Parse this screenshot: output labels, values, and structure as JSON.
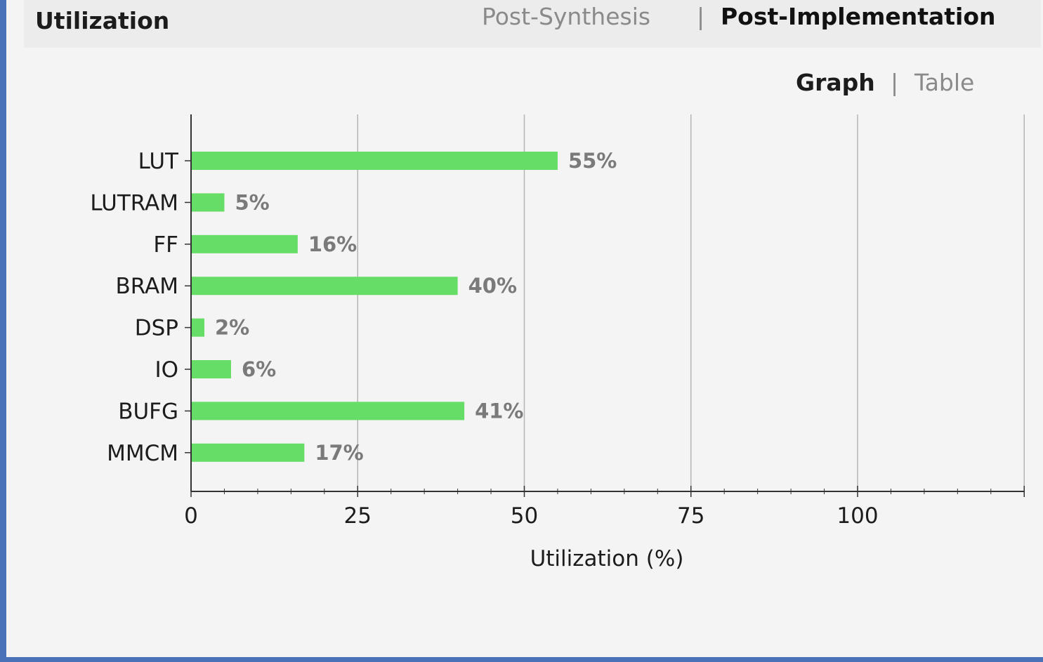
{
  "panel": {
    "title": "Utilization",
    "tabs": {
      "post_synthesis": "Post-Synthesis",
      "separator": "|",
      "post_implementation": "Post-Implementation",
      "active": "Post-Implementation"
    },
    "view": {
      "graph": "Graph",
      "separator": "|",
      "table": "Table",
      "active": "Graph"
    }
  },
  "colors": {
    "bar": "#66dd66",
    "value_label": "#7a7a7a",
    "grid": "#b5b5b5",
    "accent_border": "#4a72b8"
  },
  "chart_data": {
    "type": "bar",
    "orientation": "horizontal",
    "categories": [
      "LUT",
      "LUTRAM",
      "FF",
      "BRAM",
      "DSP",
      "IO",
      "BUFG",
      "MMCM"
    ],
    "values": [
      55,
      5,
      16,
      40,
      2,
      6,
      41,
      17
    ],
    "value_labels": [
      "55%",
      "5%",
      "16%",
      "40%",
      "2%",
      "6%",
      "41%",
      "17%"
    ],
    "xlabel": "Utilization (%)",
    "xlim": [
      0,
      125
    ],
    "xticks": [
      "0",
      "25",
      "50",
      "75",
      "100"
    ],
    "grid": true
  }
}
